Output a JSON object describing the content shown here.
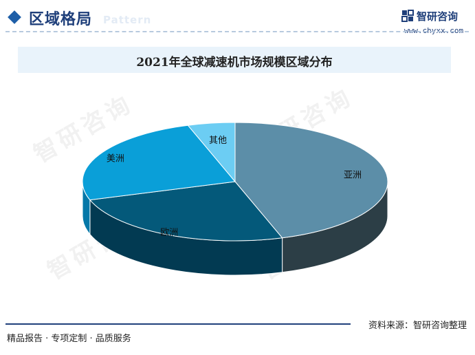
{
  "header": {
    "title": "区域格局",
    "title_bg_word": "Pattern",
    "brand_name": "智研咨询",
    "brand_url": "www.chyxx.com"
  },
  "chart_data": {
    "type": "pie",
    "title": "2021年全球减速机市场规模区域分布",
    "slices": [
      {
        "label": "亚洲",
        "value": 45,
        "color": "#5c8ea8",
        "side_color": "#2c3e46"
      },
      {
        "label": "欧洲",
        "value": 25,
        "color": "#04597a",
        "side_color": "#023a52"
      },
      {
        "label": "美洲",
        "value": 25,
        "color": "#0a9fd8",
        "side_color": "#0578a8"
      },
      {
        "label": "其他",
        "value": 5,
        "color": "#6ccdf3",
        "side_color": "#3ca9d4"
      }
    ],
    "start_angle_deg": 0,
    "direction": "clockwise",
    "legend": "none"
  },
  "footer": {
    "source": "资料来源：智研咨询整理",
    "slogan": "精品报告 · 专项定制 · 品质服务"
  },
  "watermark_text": "智研咨询"
}
